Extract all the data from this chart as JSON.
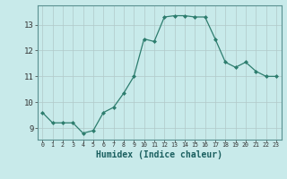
{
  "x": [
    0,
    1,
    2,
    3,
    4,
    5,
    6,
    7,
    8,
    9,
    10,
    11,
    12,
    13,
    14,
    15,
    16,
    17,
    18,
    19,
    20,
    21,
    22,
    23
  ],
  "y": [
    9.6,
    9.2,
    9.2,
    9.2,
    8.8,
    8.9,
    9.6,
    9.8,
    10.35,
    11.0,
    12.45,
    12.35,
    13.3,
    13.35,
    13.35,
    13.3,
    13.3,
    12.45,
    11.55,
    11.35,
    11.55,
    11.2,
    11.0,
    11.0
  ],
  "line_color": "#2d7d6e",
  "marker": "D",
  "marker_size": 2.0,
  "bg_color": "#c8eaea",
  "grid_color": "#b0c8c8",
  "xlabel": "Humidex (Indice chaleur)",
  "xlabel_fontsize": 7,
  "ytick_labels": [
    "9",
    "10",
    "11",
    "12",
    "13"
  ],
  "ylabel_ticks": [
    9,
    10,
    11,
    12,
    13
  ],
  "xtick_labels": [
    "0",
    "1",
    "2",
    "3",
    "4",
    "5",
    "6",
    "7",
    "8",
    "9",
    "10",
    "11",
    "12",
    "13",
    "14",
    "15",
    "16",
    "17",
    "18",
    "19",
    "20",
    "21",
    "22",
    "23"
  ],
  "ylim": [
    8.55,
    13.75
  ],
  "xlim": [
    -0.5,
    23.5
  ]
}
